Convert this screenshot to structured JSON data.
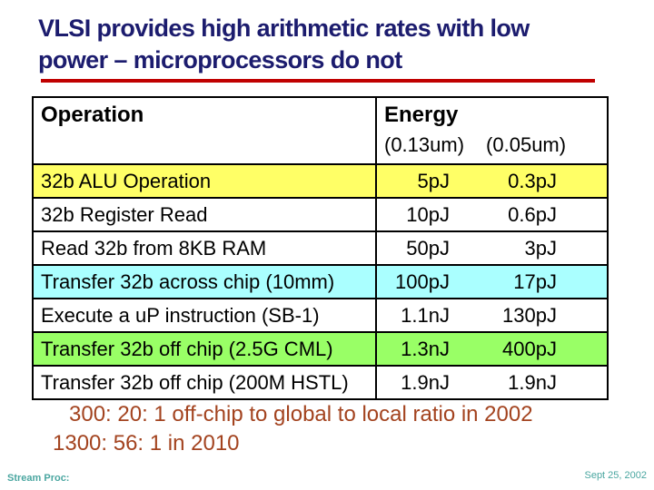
{
  "header": {
    "title_line1": "VLSI provides high arithmetic rates with low",
    "title_line2": "power – microprocessors do not"
  },
  "table": {
    "operation_header": "Operation",
    "energy_header": "Energy",
    "energy_sub_headers": [
      "(0.13um)",
      "(0.05um)"
    ],
    "rows": [
      {
        "operation": "32b ALU Operation",
        "energy_013um": "5pJ",
        "energy_005um": "0.3pJ",
        "row_color": "#FFFF66"
      },
      {
        "operation": "32b Register Read",
        "energy_013um": "10pJ",
        "energy_005um": "0.6pJ",
        "row_color": "#FFFFFF"
      },
      {
        "operation": "Read 32b from 8KB RAM",
        "energy_013um": "50pJ",
        "energy_005um": "3pJ",
        "row_color": "#FFFFFF"
      },
      {
        "operation": "Transfer 32b across chip (10mm)",
        "energy_013um": "100pJ",
        "energy_005um": "17pJ",
        "row_color": "#AAFFFF"
      },
      {
        "operation": "Execute a uP instruction (SB-1)",
        "energy_013um": "1.1nJ",
        "energy_005um": "130pJ",
        "row_color": "#FFFFFF"
      },
      {
        "operation": "Transfer 32b off chip (2.5G CML)",
        "energy_013um": "1.3nJ",
        "energy_005um": "400pJ",
        "row_color": "#99FF66"
      },
      {
        "operation": "Transfer 32b off chip (200M HSTL)",
        "energy_013um": "1.9nJ",
        "energy_005um": "1.9nJ",
        "row_color": "#FFFFFF"
      }
    ]
  },
  "notes": {
    "line1": "300: 20: 1 off-chip to global to local ratio in 2002",
    "line2": "1300: 56: 1 in 2010"
  },
  "footer": {
    "left": "Stream Proc:",
    "right": "Sept 25, 2002"
  },
  "colors": {
    "title": "#1C1C6E",
    "title_underline": "#C00000",
    "table_border": "#000000",
    "row_yellow": "#FFFF66",
    "row_cyan": "#AAFFFF",
    "row_green": "#99FF66",
    "notes_text": "#A3431F",
    "footer_text": "#4AA6A0",
    "background": "#FFFFFF"
  }
}
